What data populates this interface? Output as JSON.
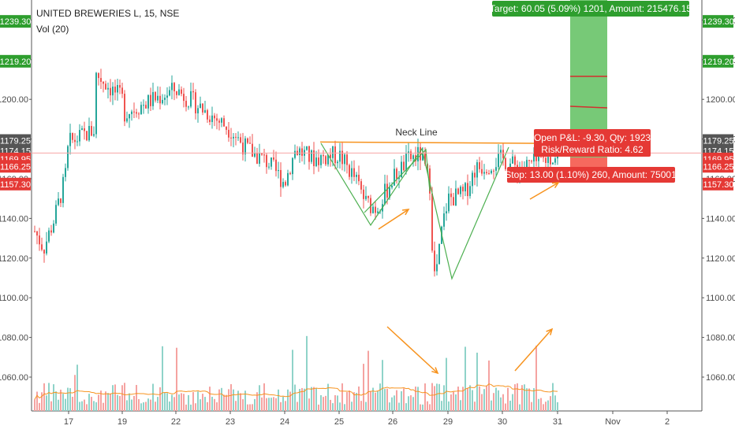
{
  "header": {
    "symbol": "UNITED BREWERIES L, 15, NSE",
    "volume_indicator": "Vol (20)"
  },
  "colors": {
    "up": "#26a69a",
    "down": "#ef5350",
    "target_zone": "#5fbf5f",
    "stop_zone": "#f44336",
    "annotation": "#f7931e",
    "pattern": "#4caf50",
    "volume_ma": "#f7931e"
  },
  "chart_data": {
    "type": "candlestick",
    "symbol": "UNITED BREWERIES L",
    "timeframe": "15",
    "exchange": "NSE",
    "y_price_range": [
      1043,
      1243
    ],
    "y_ticks": [
      "1060.00",
      "1080.00",
      "1100.00",
      "1120.00",
      "1140.00",
      "1160.00",
      "1180.00",
      "1200.00",
      "1220.00",
      "1240.00"
    ],
    "x_ticks": [
      "17",
      "19",
      "22",
      "23",
      "24",
      "25",
      "26",
      "29",
      "30",
      "31",
      "Nov",
      "2"
    ],
    "price_tags": [
      {
        "label": "1239.30",
        "value": 1239.3,
        "kind": "target"
      },
      {
        "label": "1219.20",
        "value": 1219.2,
        "kind": "target"
      },
      {
        "label": "1179.25",
        "value": 1179.25,
        "kind": "neutral"
      },
      {
        "label": "1174.15",
        "value": 1174.15,
        "kind": "neutral"
      },
      {
        "label": "1169.95",
        "value": 1169.95,
        "kind": "stop"
      },
      {
        "label": "1166.25",
        "value": 1166.25,
        "kind": "stop"
      },
      {
        "label": "1157.30",
        "value": 1157.3,
        "kind": "stop"
      }
    ],
    "price_path": [
      [
        "16",
        1135
      ],
      [
        "16.3",
        1125
      ],
      [
        "16.6",
        1140
      ],
      [
        "16.9",
        1160
      ],
      [
        "17",
        1178
      ],
      [
        "17.5",
        1185
      ],
      [
        "18",
        1195
      ],
      [
        "18.5",
        1215
      ],
      [
        "18.8",
        1212
      ],
      [
        "19",
        1200
      ],
      [
        "20",
        1185
      ],
      [
        "21",
        1175
      ],
      [
        "21.5",
        1185
      ],
      [
        "22",
        1205
      ],
      [
        "22.5",
        1195
      ],
      [
        "23",
        1185
      ],
      [
        "23.3",
        1175
      ],
      [
        "23.7",
        1168
      ],
      [
        "24",
        1158
      ],
      [
        "24.2",
        1175
      ],
      [
        "24.5",
        1170
      ],
      [
        "25",
        1172
      ],
      [
        "25.3",
        1160
      ],
      [
        "25.5",
        1148
      ],
      [
        "25.7",
        1145
      ],
      [
        "26",
        1160
      ],
      [
        "26.3",
        1170
      ],
      [
        "26.5",
        1172
      ],
      [
        "26.7",
        1155
      ],
      [
        "28",
        1150
      ],
      [
        "28.3",
        1110
      ],
      [
        "28.5",
        1120
      ],
      [
        "28.7",
        1135
      ],
      [
        "29",
        1150
      ],
      [
        "29.3",
        1152
      ],
      [
        "29.5",
        1165
      ],
      [
        "30",
        1170
      ],
      [
        "30.3",
        1165
      ],
      [
        "30.6",
        1168
      ],
      [
        "31",
        1172
      ]
    ],
    "volume": {
      "ma_period": 20,
      "spike_dates": [
        "16.3",
        "18.8",
        "26",
        "28.3",
        "31"
      ]
    },
    "annotations": {
      "neck_line": {
        "label": "Neck Line",
        "price": 1174.15
      },
      "target": {
        "text": "Target: 60.05 (5.09%) 1201, Amount: 215476.15",
        "price_top": 1239.3,
        "price_bottom": 1174.15
      },
      "open_pnl": {
        "text": "Open P&L: -9.30, Qty: 1923",
        "subtext": "Risk/Reward Ratio: 4.62"
      },
      "stop": {
        "text": "Stop: 13.00 (1.10%) 260, Amount: 75001",
        "price_top": 1174.15,
        "price_bottom": 1161.15
      }
    }
  }
}
